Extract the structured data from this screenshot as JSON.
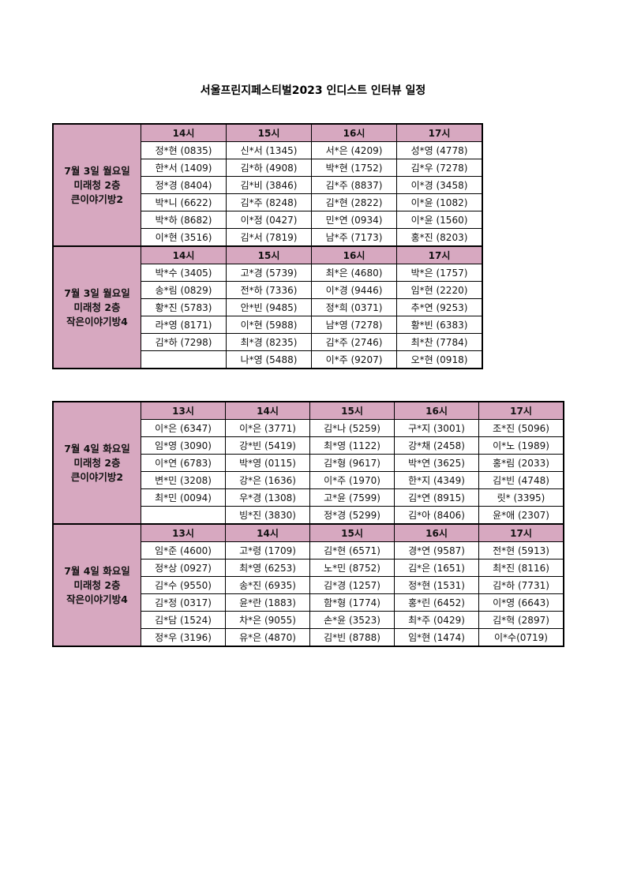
{
  "title": "서울프린지페스티벌2023 인디스트 인터뷰 일정",
  "header_color": "#d7a8c0",
  "tables": [
    {
      "sections": [
        {
          "label": [
            "7월 3일 월요일",
            "미래청 2층",
            "큰이야기방2"
          ],
          "times": [
            "14시",
            "15시",
            "16시",
            "17시"
          ],
          "rows": [
            [
              "정*현 (0835)",
              "신*서 (1345)",
              "서*은 (4209)",
              "성*영 (4778)"
            ],
            [
              "한*서 (1409)",
              "김*하 (4908)",
              "박*현 (1752)",
              "김*우 (7278)"
            ],
            [
              "정*경 (8404)",
              "김*비 (3846)",
              "김*주 (8837)",
              "이*경 (3458)"
            ],
            [
              "박*니 (6622)",
              "김*주 (8248)",
              "김*현 (2822)",
              "이*윤 (1082)"
            ],
            [
              "박*하 (8682)",
              "이*정 (0427)",
              "민*연 (0934)",
              "이*윤 (1560)"
            ],
            [
              "이*현 (3516)",
              "김*서 (7819)",
              "남*주 (7173)",
              "홍*진 (8203)"
            ]
          ]
        },
        {
          "label": [
            "7월 3일 월요일",
            "미래청 2층",
            "작은이야기방4"
          ],
          "times": [
            "14시",
            "15시",
            "16시",
            "17시"
          ],
          "rows": [
            [
              "박*수 (3405)",
              "고*경 (5739)",
              "최*은 (4680)",
              "박*은 (1757)"
            ],
            [
              "송*림 (0829)",
              "전*하 (7336)",
              "이*경 (9446)",
              "임*현 (2220)"
            ],
            [
              "황*진 (5783)",
              "안*빈 (9485)",
              "정*희 (0371)",
              "추*연 (9253)"
            ],
            [
              "라*영 (8171)",
              "이*현 (5988)",
              "남*영 (7278)",
              "황*빈 (6383)"
            ],
            [
              "김*하 (7298)",
              "최*경 (8235)",
              "김*주 (2746)",
              "최*찬 (7784)"
            ],
            [
              "",
              "나*영 (5488)",
              "이*주 (9207)",
              "오*현 (0918)"
            ]
          ]
        }
      ]
    },
    {
      "sections": [
        {
          "label": [
            "7월 4일 화요일",
            "미래청 2층",
            "큰이야기방2"
          ],
          "times": [
            "13시",
            "14시",
            "15시",
            "16시",
            "17시"
          ],
          "rows": [
            [
              "이*은 (6347)",
              "이*은 (3771)",
              "김*나 (5259)",
              "구*지 (3001)",
              "조*진 (5096)"
            ],
            [
              "임*영 (3090)",
              "강*빈 (5419)",
              "최*영 (1122)",
              "강*채 (2458)",
              "이*노 (1989)"
            ],
            [
              "이*연 (6783)",
              "박*영 (0115)",
              "김*형 (9617)",
              "박*연 (3625)",
              "홍*림 (2033)"
            ],
            [
              "변*민 (3208)",
              "강*은 (1636)",
              "이*주 (1970)",
              "한*지 (4349)",
              "김*빈 (4748)"
            ],
            [
              "최*민 (0094)",
              "우*경 (1308)",
              "고*윤 (7599)",
              "김*연 (8915)",
              "릿* (3395)"
            ],
            [
              "",
              "빙*진 (3830)",
              "정*경 (5299)",
              "김*아 (8406)",
              "윤*애 (2307)"
            ]
          ]
        },
        {
          "label": [
            "7월 4일 화요일",
            "미래청 2층",
            "작은이야기방4"
          ],
          "times": [
            "13시",
            "14시",
            "15시",
            "16시",
            "17시"
          ],
          "rows": [
            [
              "임*준 (4600)",
              "고*령 (1709)",
              "김*현 (6571)",
              "경*연 (9587)",
              "전*현 (5913)"
            ],
            [
              "정*상 (0927)",
              "최*영 (6253)",
              "노*민 (8752)",
              "김*은 (1651)",
              "최*진 (8116)"
            ],
            [
              "김*수 (9550)",
              "송*진 (6935)",
              "김*경 (1257)",
              "정*현 (1531)",
              "김*하 (7731)"
            ],
            [
              "김*정 (0317)",
              "윤*란 (1883)",
              "함*형 (1774)",
              "홍*린 (6452)",
              "이*영 (6643)"
            ],
            [
              "김*담 (1524)",
              "차*은 (9055)",
              "손*윤 (3523)",
              "최*주 (0429)",
              "김*혁 (2897)"
            ],
            [
              "정*우 (3196)",
              "유*은 (4870)",
              "김*빈 (8788)",
              "임*현 (1474)",
              "이*수(0719)"
            ]
          ]
        }
      ]
    }
  ]
}
